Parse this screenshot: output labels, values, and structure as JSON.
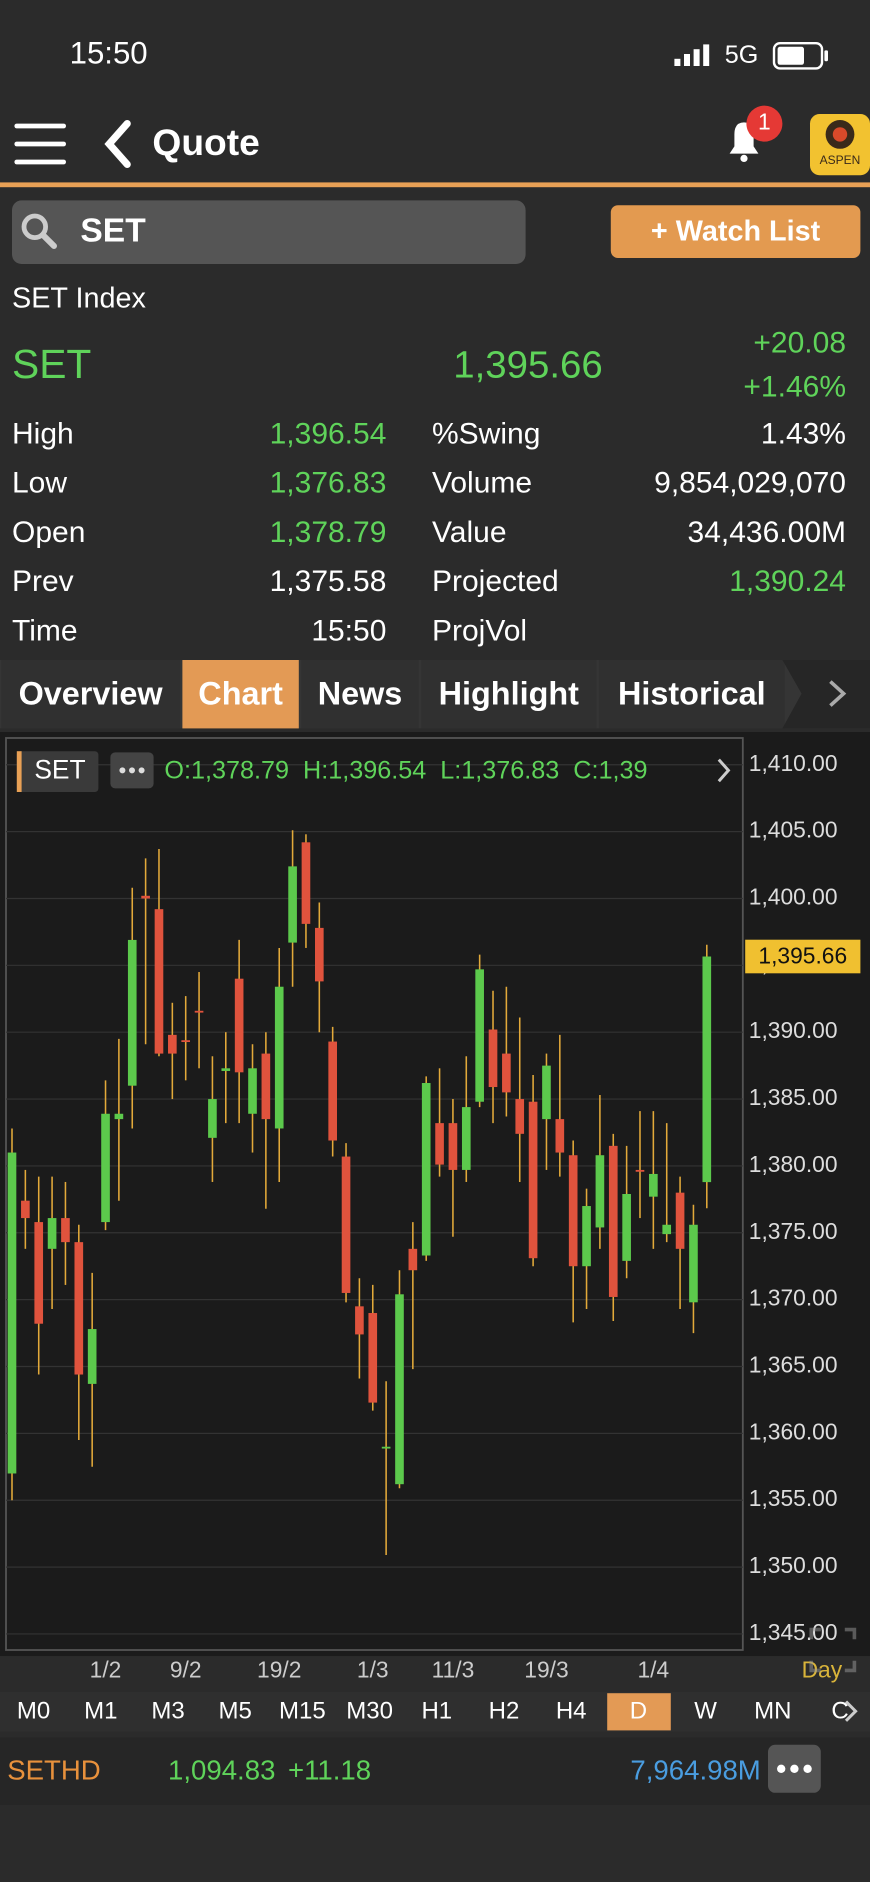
{
  "status": {
    "time": "15:50",
    "network": "5G"
  },
  "header": {
    "title": "Quote",
    "badge": "1",
    "logo": "ASPEN"
  },
  "search": {
    "query": "SET",
    "button": "+ Watch List"
  },
  "quote": {
    "name": "SET Index",
    "symbol": "SET",
    "last": "1,395.66",
    "change": "+20.08",
    "change_pct": "+1.46%",
    "stats_left": [
      {
        "label": "High",
        "value": "1,396.54",
        "color": "#5fd35a"
      },
      {
        "label": "Low",
        "value": "1,376.83",
        "color": "#5fd35a"
      },
      {
        "label": "Open",
        "value": "1,378.79",
        "color": "#5fd35a"
      },
      {
        "label": "Prev",
        "value": "1,375.58",
        "color": "#ffffff"
      },
      {
        "label": "Time",
        "value": "15:50",
        "color": "#ffffff"
      }
    ],
    "stats_right": [
      {
        "label": "%Swing",
        "value": "1.43%",
        "color": "#ffffff"
      },
      {
        "label": "Volume",
        "value": "9,854,029,070",
        "color": "#ffffff"
      },
      {
        "label": "Value",
        "value": "34,436.00M",
        "color": "#ffffff"
      },
      {
        "label": "Projected",
        "value": "1,390.24",
        "color": "#5fd35a"
      },
      {
        "label": "ProjVol"
      }
    ]
  },
  "tabs": {
    "items": [
      "Overview",
      "Chart",
      "News",
      "Highlight",
      "Historical"
    ],
    "active": 1
  },
  "chart_data": {
    "type": "candlestick",
    "symbol": "SET",
    "ohlc_label": "O:1,378.79  H:1,396.54  L:1,376.83  C:1,39",
    "categories": [
      null,
      null,
      null,
      null,
      null,
      null,
      null,
      "1/2",
      null,
      null,
      null,
      null,
      null,
      "9/2",
      null,
      null,
      null,
      null,
      null,
      null,
      "19/2",
      null,
      null,
      null,
      null,
      null,
      null,
      "1/3",
      null,
      null,
      null,
      null,
      null,
      "11/3",
      null,
      null,
      null,
      null,
      null,
      null,
      "19/3",
      null,
      null,
      null,
      null,
      null,
      null,
      null,
      "1/4",
      null,
      null,
      null,
      null
    ],
    "open": [
      1357.0,
      1377.4,
      1375.8,
      1373.8,
      1376.1,
      1374.3,
      1363.7,
      1375.8,
      1383.5,
      1386.0,
      1400.2,
      1399.2,
      1389.8,
      1389.4,
      1391.6,
      1382.1,
      1387.1,
      1394.0,
      1383.9,
      1388.4,
      1382.8,
      1396.7,
      1404.2,
      1397.8,
      1389.3,
      1380.7,
      1369.5,
      1369.0,
      1359.0,
      1356.2,
      1373.8,
      1373.3,
      1383.2,
      1383.2,
      1379.7,
      1384.8,
      1390.2,
      1388.4,
      1385.0,
      1384.8,
      1383.5,
      1383.5,
      1380.8,
      1372.5,
      1375.4,
      1381.5,
      1372.9,
      1379.7,
      1377.7,
      1374.9,
      1378.0,
      1369.8,
      1378.79
    ],
    "high": [
      1382.8,
      1379.7,
      1379.2,
      1379.2,
      1378.8,
      1375.6,
      1372.0,
      1386.4,
      1389.5,
      1400.8,
      1403.0,
      1403.7,
      1392.2,
      1392.7,
      1394.5,
      1388.2,
      1390.0,
      1396.9,
      1389.1,
      1390.0,
      1396.3,
      1405.1,
      1404.8,
      1399.7,
      1390.4,
      1381.7,
      1371.6,
      1371.1,
      1363.9,
      1372.2,
      1375.8,
      1386.7,
      1387.3,
      1385.0,
      1388.2,
      1395.8,
      1393.1,
      1393.4,
      1391.1,
      1386.8,
      1388.4,
      1389.8,
      1381.9,
      1378.3,
      1385.3,
      1382.4,
      1381.5,
      1384.1,
      1384.1,
      1383.2,
      1379.2,
      1377.1,
      1396.54
    ],
    "low": [
      1355.0,
      1373.8,
      1364.4,
      1369.3,
      1371.1,
      1359.5,
      1357.5,
      1375.2,
      1377.4,
      1382.8,
      1389.1,
      1388.2,
      1385.0,
      1386.4,
      1387.3,
      1378.8,
      1383.2,
      1383.2,
      1381.0,
      1376.8,
      1378.8,
      1393.4,
      1396.3,
      1390.0,
      1380.7,
      1369.8,
      1364.1,
      1361.7,
      1350.9,
      1355.9,
      1364.8,
      1372.9,
      1379.2,
      1374.7,
      1378.8,
      1384.4,
      1383.2,
      1383.7,
      1378.8,
      1372.5,
      1379.7,
      1379.2,
      1368.3,
      1369.3,
      1373.8,
      1368.4,
      1371.6,
      1376.1,
      1373.8,
      1374.3,
      1369.3,
      1367.5,
      1376.83
    ],
    "close": [
      1381.0,
      1376.1,
      1368.2,
      1376.1,
      1374.3,
      1364.4,
      1367.8,
      1383.9,
      1383.9,
      1396.9,
      1400.0,
      1388.4,
      1388.4,
      1389.3,
      1391.5,
      1385.0,
      1387.3,
      1387.0,
      1387.3,
      1383.5,
      1393.4,
      1402.4,
      1398.1,
      1393.8,
      1381.9,
      1370.5,
      1367.4,
      1362.3,
      1359.0,
      1370.4,
      1372.2,
      1386.2,
      1380.1,
      1379.7,
      1384.4,
      1394.7,
      1385.9,
      1385.5,
      1382.4,
      1373.1,
      1387.5,
      1381.0,
      1372.5,
      1377.0,
      1380.8,
      1370.2,
      1377.9,
      1379.6,
      1379.4,
      1375.6,
      1373.8,
      1375.6,
      1395.66
    ],
    "up_color": "#5cc94c",
    "down_color": "#e0533d",
    "wick_color": "#e2a93a",
    "ylim": [
      1343.8,
      1412
    ],
    "yticks": [
      {
        "value": 1345,
        "label": "1,345.00"
      },
      {
        "value": 1350,
        "label": "1,350.00"
      },
      {
        "value": 1355,
        "label": "1,355.00"
      },
      {
        "value": 1360,
        "label": "1,360.00"
      },
      {
        "value": 1365,
        "label": "1,365.00"
      },
      {
        "value": 1370,
        "label": "1,370.00"
      },
      {
        "value": 1375,
        "label": "1,375.00"
      },
      {
        "value": 1380,
        "label": "1,380.00"
      },
      {
        "value": 1385,
        "label": "1,385.00"
      },
      {
        "value": 1390,
        "label": "1,390.00"
      },
      {
        "value": 1395,
        "label": "1,395.00"
      },
      {
        "value": 1400,
        "label": "1,400.00"
      },
      {
        "value": 1405,
        "label": "1,405.00"
      },
      {
        "value": 1410,
        "label": "1,410.00"
      }
    ],
    "grid": true,
    "period": "Day"
  },
  "timeframes": {
    "items": [
      "M0",
      "M1",
      "M3",
      "M5",
      "M15",
      "M30",
      "H1",
      "H2",
      "H4",
      "D",
      "W",
      "MN",
      "C"
    ],
    "active": 9
  },
  "footer": {
    "symbol": "SETHD",
    "price": "1,094.83",
    "change": "+11.18",
    "turnover": "7,964.98M"
  }
}
